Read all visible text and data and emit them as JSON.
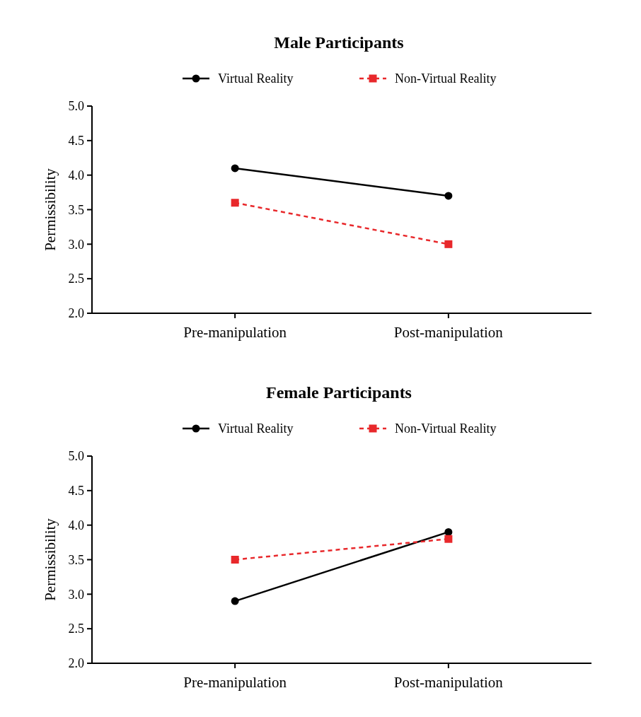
{
  "chart_data": [
    {
      "type": "line",
      "title": "Male Participants",
      "ylabel": "Permissibility",
      "categories": [
        "Pre-manipulation",
        "Post-manipulation"
      ],
      "ylim": [
        2.0,
        5.0
      ],
      "yticks": [
        {
          "value": 2,
          "label": "2.0"
        },
        {
          "value": 2.5,
          "label": "2.5"
        },
        {
          "value": 3,
          "label": "3.0"
        },
        {
          "value": 3.5,
          "label": "3.5"
        },
        {
          "value": 4,
          "label": "4.0"
        },
        {
          "value": 4.5,
          "label": "4.5"
        },
        {
          "value": 5,
          "label": "5.0"
        }
      ],
      "legend": "top",
      "grid": false,
      "series": [
        {
          "name": "Virtual Reality",
          "color": "#000000",
          "marker": "circle",
          "line_style": "solid",
          "values": [
            4.1,
            3.7
          ]
        },
        {
          "name": "Non-Virtual Reality",
          "color": "#e8282b",
          "marker": "square",
          "line_style": "dashed",
          "values": [
            3.6,
            3.0
          ]
        }
      ]
    },
    {
      "type": "line",
      "title": "Female Participants",
      "ylabel": "Permissibility",
      "categories": [
        "Pre-manipulation",
        "Post-manipulation"
      ],
      "ylim": [
        2.0,
        5.0
      ],
      "yticks": [
        {
          "value": 2,
          "label": "2.0"
        },
        {
          "value": 2.5,
          "label": "2.5"
        },
        {
          "value": 3,
          "label": "3.0"
        },
        {
          "value": 3.5,
          "label": "3.5"
        },
        {
          "value": 4,
          "label": "4.0"
        },
        {
          "value": 4.5,
          "label": "4.5"
        },
        {
          "value": 5,
          "label": "5.0"
        }
      ],
      "legend": "top",
      "grid": false,
      "series": [
        {
          "name": "Virtual Reality",
          "color": "#000000",
          "marker": "circle",
          "line_style": "solid",
          "values": [
            2.9,
            3.9
          ]
        },
        {
          "name": "Non-Virtual Reality",
          "color": "#e8282b",
          "marker": "square",
          "line_style": "dashed",
          "values": [
            3.5,
            3.8
          ]
        }
      ]
    }
  ]
}
